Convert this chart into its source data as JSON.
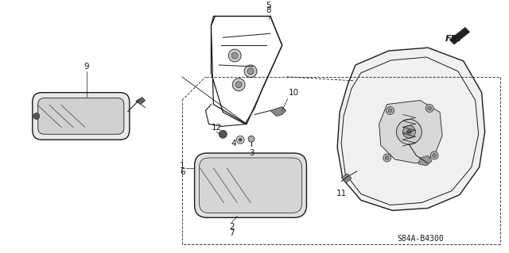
{
  "diagram_code": "S84A-B4300",
  "bg_color": "#ffffff",
  "line_color": "#1a1a1a",
  "figsize": [
    6.4,
    3.19
  ],
  "dpi": 100
}
